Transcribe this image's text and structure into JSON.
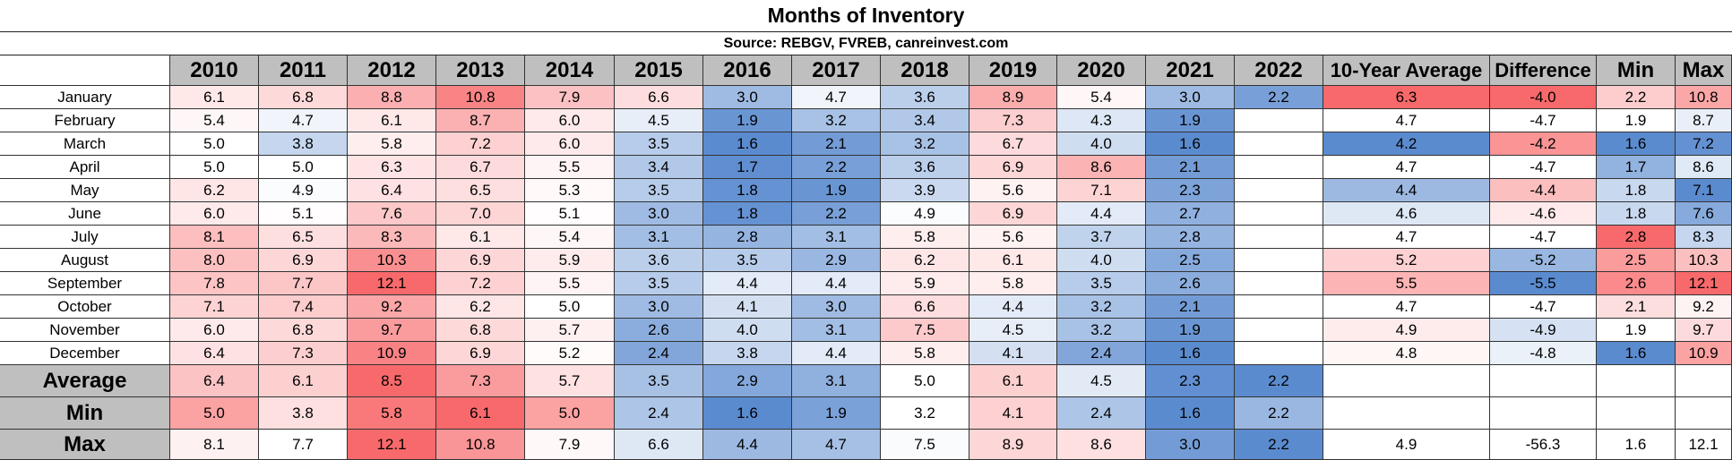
{
  "title": "Months of Inventory",
  "subtitle": "Source: REBGV, FVREB, canreinvest.com",
  "colors": {
    "low": "#5b8bcf",
    "mid": "#ffffff",
    "high": "#f8696b",
    "header": "#bfbfbf"
  },
  "chart_data": {
    "type": "table",
    "title": "Months of Inventory",
    "subtitle": "Source: REBGV, FVREB, canreinvest.com",
    "columns": [
      "2010",
      "2011",
      "2012",
      "2013",
      "2014",
      "2015",
      "2016",
      "2017",
      "2018",
      "2019",
      "2020",
      "2021",
      "2022",
      "10-Year Average",
      "Difference",
      "Min",
      "Max"
    ],
    "months": [
      "January",
      "February",
      "March",
      "April",
      "May",
      "June",
      "July",
      "August",
      "September",
      "October",
      "November",
      "December"
    ],
    "years": [
      "2010",
      "2011",
      "2012",
      "2013",
      "2014",
      "2015",
      "2016",
      "2017",
      "2018",
      "2019",
      "2020",
      "2021",
      "2022"
    ],
    "values": [
      [
        "6.1",
        "6.8",
        "8.8",
        "10.8",
        "7.9",
        "6.6",
        "3.0",
        "4.7",
        "3.6",
        "8.9",
        "5.4",
        "3.0",
        "2.2"
      ],
      [
        "5.4",
        "4.7",
        "6.1",
        "8.7",
        "6.0",
        "4.5",
        "1.9",
        "3.2",
        "3.4",
        "7.3",
        "4.3",
        "1.9",
        ""
      ],
      [
        "5.0",
        "3.8",
        "5.8",
        "7.2",
        "6.0",
        "3.5",
        "1.6",
        "2.1",
        "3.2",
        "6.7",
        "4.0",
        "1.6",
        ""
      ],
      [
        "5.0",
        "5.0",
        "6.3",
        "6.7",
        "5.5",
        "3.4",
        "1.7",
        "2.2",
        "3.6",
        "6.9",
        "8.6",
        "2.1",
        ""
      ],
      [
        "6.2",
        "4.9",
        "6.4",
        "6.5",
        "5.3",
        "3.5",
        "1.8",
        "1.9",
        "3.9",
        "5.6",
        "7.1",
        "2.3",
        ""
      ],
      [
        "6.0",
        "5.1",
        "7.6",
        "7.0",
        "5.1",
        "3.0",
        "1.8",
        "2.2",
        "4.9",
        "6.9",
        "4.4",
        "2.7",
        ""
      ],
      [
        "8.1",
        "6.5",
        "8.3",
        "6.1",
        "5.4",
        "3.1",
        "2.8",
        "3.1",
        "5.8",
        "5.6",
        "3.7",
        "2.8",
        ""
      ],
      [
        "8.0",
        "6.9",
        "10.3",
        "6.9",
        "5.9",
        "3.6",
        "3.5",
        "2.9",
        "6.2",
        "6.1",
        "4.0",
        "2.5",
        ""
      ],
      [
        "7.8",
        "7.7",
        "12.1",
        "7.2",
        "5.5",
        "3.5",
        "4.4",
        "4.4",
        "5.9",
        "5.8",
        "3.5",
        "2.6",
        ""
      ],
      [
        "7.1",
        "7.4",
        "9.2",
        "6.2",
        "5.0",
        "3.0",
        "4.1",
        "3.0",
        "6.6",
        "4.4",
        "3.2",
        "2.1",
        ""
      ],
      [
        "6.0",
        "6.8",
        "9.7",
        "6.8",
        "5.7",
        "2.6",
        "4.0",
        "3.1",
        "7.5",
        "4.5",
        "3.2",
        "1.9",
        ""
      ],
      [
        "6.4",
        "7.3",
        "10.9",
        "6.9",
        "5.2",
        "2.4",
        "3.8",
        "4.4",
        "5.8",
        "4.1",
        "2.4",
        "1.6",
        ""
      ]
    ],
    "ten_year_average": [
      "6.3",
      "4.7",
      "4.2",
      "4.7",
      "4.4",
      "4.6",
      "4.7",
      "5.2",
      "5.5",
      "4.7",
      "4.9",
      "4.8"
    ],
    "difference": [
      "-4.0",
      "-4.7",
      "-4.2",
      "-4.7",
      "-4.4",
      "-4.6",
      "-4.7",
      "-5.2",
      "-5.5",
      "-4.7",
      "-4.9",
      "-4.8"
    ],
    "min": [
      "2.2",
      "1.9",
      "1.6",
      "1.7",
      "1.8",
      "1.8",
      "2.8",
      "2.5",
      "2.6",
      "2.1",
      "1.9",
      "1.6"
    ],
    "max": [
      "10.8",
      "8.7",
      "7.2",
      "8.6",
      "7.1",
      "7.6",
      "8.3",
      "10.3",
      "12.1",
      "9.2",
      "9.7",
      "10.9"
    ],
    "summary_labels": [
      "Average",
      "Min",
      "Max"
    ],
    "summary": {
      "average": [
        "6.4",
        "6.1",
        "8.5",
        "7.3",
        "5.7",
        "3.5",
        "2.9",
        "3.1",
        "5.0",
        "6.1",
        "4.5",
        "2.3",
        "2.2"
      ],
      "min": [
        "5.0",
        "3.8",
        "5.8",
        "6.1",
        "5.0",
        "2.4",
        "1.6",
        "1.9",
        "3.2",
        "4.1",
        "2.4",
        "1.6",
        "2.2"
      ],
      "max": [
        "8.1",
        "7.7",
        "12.1",
        "10.8",
        "7.9",
        "6.6",
        "4.4",
        "4.7",
        "7.5",
        "8.9",
        "8.6",
        "3.0",
        "2.2"
      ],
      "max_extra": [
        "4.9",
        "-56.3",
        "1.6",
        "12.1"
      ]
    }
  }
}
